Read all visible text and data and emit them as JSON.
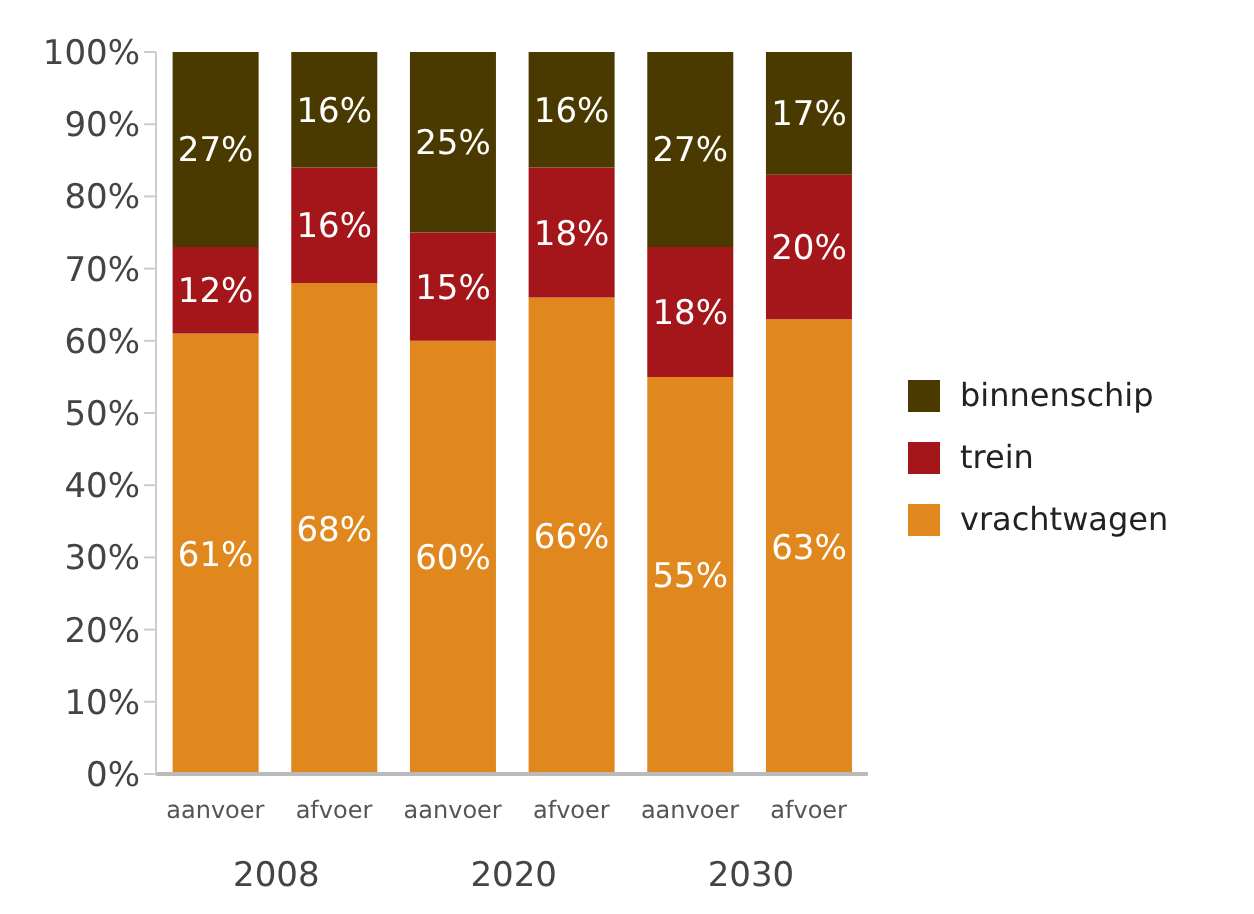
{
  "chart_data": {
    "type": "bar",
    "stacked": true,
    "categories": [
      "aanvoer",
      "afvoer",
      "aanvoer",
      "afvoer",
      "aanvoer",
      "afvoer"
    ],
    "series": [
      {
        "name": "vrachtwagen",
        "color": "#e0871e",
        "values": [
          61,
          68,
          60,
          66,
          55,
          63
        ],
        "value_labels": [
          "61%",
          "68%",
          "60%",
          "66%",
          "55%",
          "63%"
        ]
      },
      {
        "name": "trein",
        "color": "#a4161a",
        "values": [
          12,
          16,
          15,
          18,
          18,
          20
        ],
        "value_labels": [
          "12%",
          "16%",
          "15%",
          "18%",
          "18%",
          "20%"
        ]
      },
      {
        "name": "binnenschip",
        "color": "#4a3a00",
        "values": [
          27,
          16,
          25,
          16,
          27,
          17
        ],
        "value_labels": [
          "27%",
          "16%",
          "25%",
          "16%",
          "27%",
          "17%"
        ]
      }
    ],
    "annotations": [
      "2008",
      "2020",
      "2030"
    ],
    "ylim": [
      0,
      100
    ],
    "yticks": [
      {
        "value": 0,
        "label": "0%"
      },
      {
        "value": 10,
        "label": "10%"
      },
      {
        "value": 20,
        "label": "20%"
      },
      {
        "value": 30,
        "label": "30%"
      },
      {
        "value": 40,
        "label": "40%"
      },
      {
        "value": 50,
        "label": "50%"
      },
      {
        "value": 60,
        "label": "60%"
      },
      {
        "value": 70,
        "label": "70%"
      },
      {
        "value": 80,
        "label": "80%"
      },
      {
        "value": 90,
        "label": "90%"
      },
      {
        "value": 100,
        "label": "100%"
      }
    ],
    "legend": "right"
  }
}
